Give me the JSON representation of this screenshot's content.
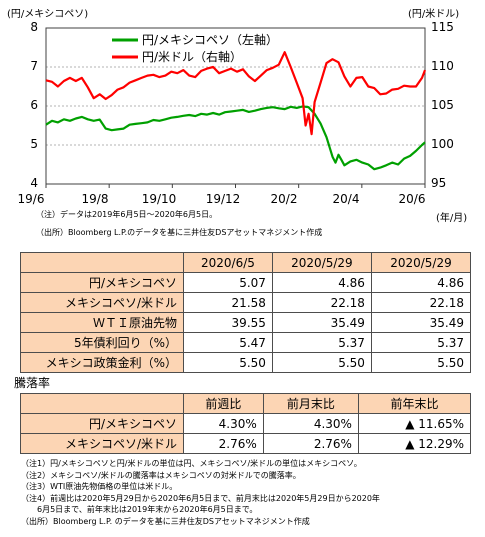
{
  "chart_data": {
    "type": "line",
    "left_axis_unit": "(円/メキシコペソ)",
    "right_axis_unit": "(円/米ドル)",
    "x_unit": "(年/月)",
    "x_ticks": [
      "19/6",
      "19/8",
      "19/10",
      "19/12",
      "20/2",
      "20/4",
      "20/6"
    ],
    "y_left_ticks": [
      "8",
      "7",
      "6",
      "5",
      "4"
    ],
    "y_right_ticks": [
      "115",
      "110",
      "105",
      "100",
      "95"
    ],
    "ylim_left": [
      4,
      8
    ],
    "ylim_right": [
      95,
      115
    ],
    "grid": true,
    "legend_position": "top-center",
    "series": [
      {
        "name": "円/メキシコペソ（左軸）",
        "axis": "left",
        "color": "#00a000",
        "points": [
          [
            0,
            5.52
          ],
          [
            4,
            5.62
          ],
          [
            8,
            5.58
          ],
          [
            12,
            5.66
          ],
          [
            16,
            5.62
          ],
          [
            20,
            5.68
          ],
          [
            24,
            5.72
          ],
          [
            28,
            5.66
          ],
          [
            32,
            5.62
          ],
          [
            36,
            5.65
          ],
          [
            40,
            5.42
          ],
          [
            44,
            5.38
          ],
          [
            48,
            5.4
          ],
          [
            52,
            5.42
          ],
          [
            56,
            5.52
          ],
          [
            60,
            5.54
          ],
          [
            64,
            5.56
          ],
          [
            68,
            5.58
          ],
          [
            72,
            5.64
          ],
          [
            76,
            5.62
          ],
          [
            80,
            5.66
          ],
          [
            84,
            5.7
          ],
          [
            88,
            5.72
          ],
          [
            92,
            5.75
          ],
          [
            96,
            5.77
          ],
          [
            100,
            5.74
          ],
          [
            104,
            5.8
          ],
          [
            108,
            5.78
          ],
          [
            112,
            5.82
          ],
          [
            116,
            5.78
          ],
          [
            120,
            5.84
          ],
          [
            124,
            5.86
          ],
          [
            128,
            5.88
          ],
          [
            132,
            5.9
          ],
          [
            136,
            5.85
          ],
          [
            140,
            5.88
          ],
          [
            144,
            5.92
          ],
          [
            148,
            5.95
          ],
          [
            152,
            5.97
          ],
          [
            156,
            5.94
          ],
          [
            160,
            5.92
          ],
          [
            164,
            5.98
          ],
          [
            168,
            5.95
          ],
          [
            172,
            5.99
          ],
          [
            176,
            5.97
          ],
          [
            180,
            5.8
          ],
          [
            184,
            5.55
          ],
          [
            188,
            5.2
          ],
          [
            190,
            4.95
          ],
          [
            192,
            4.7
          ],
          [
            194,
            4.55
          ],
          [
            196,
            4.75
          ],
          [
            198,
            4.62
          ],
          [
            200,
            4.48
          ],
          [
            204,
            4.58
          ],
          [
            208,
            4.62
          ],
          [
            212,
            4.55
          ],
          [
            216,
            4.5
          ],
          [
            220,
            4.38
          ],
          [
            224,
            4.42
          ],
          [
            228,
            4.48
          ],
          [
            232,
            4.55
          ],
          [
            236,
            4.5
          ],
          [
            240,
            4.65
          ],
          [
            244,
            4.72
          ],
          [
            248,
            4.85
          ],
          [
            252,
            5.0
          ],
          [
            254,
            5.07
          ]
        ]
      },
      {
        "name": "円/米ドル（右軸）",
        "axis": "right",
        "color": "#ff0000",
        "points": [
          [
            0,
            108.3
          ],
          [
            4,
            108.1
          ],
          [
            8,
            107.5
          ],
          [
            12,
            108.2
          ],
          [
            16,
            108.6
          ],
          [
            20,
            108.2
          ],
          [
            24,
            108.6
          ],
          [
            28,
            107.4
          ],
          [
            32,
            106.0
          ],
          [
            36,
            106.5
          ],
          [
            40,
            105.9
          ],
          [
            44,
            106.4
          ],
          [
            48,
            107.1
          ],
          [
            52,
            107.4
          ],
          [
            56,
            108.0
          ],
          [
            60,
            108.3
          ],
          [
            64,
            108.6
          ],
          [
            68,
            108.9
          ],
          [
            72,
            109.0
          ],
          [
            76,
            108.7
          ],
          [
            80,
            108.9
          ],
          [
            84,
            109.4
          ],
          [
            88,
            109.2
          ],
          [
            92,
            109.6
          ],
          [
            96,
            108.9
          ],
          [
            100,
            108.7
          ],
          [
            104,
            109.5
          ],
          [
            108,
            109.8
          ],
          [
            112,
            110.0
          ],
          [
            116,
            109.2
          ],
          [
            120,
            109.5
          ],
          [
            124,
            109.8
          ],
          [
            128,
            109.4
          ],
          [
            132,
            109.7
          ],
          [
            136,
            108.8
          ],
          [
            140,
            108.2
          ],
          [
            144,
            108.9
          ],
          [
            148,
            109.6
          ],
          [
            152,
            109.9
          ],
          [
            156,
            110.3
          ],
          [
            160,
            111.9
          ],
          [
            164,
            110.0
          ],
          [
            168,
            108.0
          ],
          [
            172,
            106.0
          ],
          [
            174,
            102.5
          ],
          [
            176,
            104.0
          ],
          [
            178,
            101.4
          ],
          [
            180,
            105.5
          ],
          [
            184,
            108.0
          ],
          [
            188,
            110.5
          ],
          [
            192,
            111.0
          ],
          [
            196,
            110.6
          ],
          [
            200,
            108.8
          ],
          [
            204,
            107.5
          ],
          [
            208,
            108.6
          ],
          [
            212,
            108.7
          ],
          [
            216,
            107.5
          ],
          [
            220,
            107.3
          ],
          [
            224,
            106.5
          ],
          [
            228,
            106.6
          ],
          [
            232,
            107.1
          ],
          [
            236,
            107.2
          ],
          [
            240,
            107.6
          ],
          [
            244,
            107.5
          ],
          [
            248,
            107.5
          ],
          [
            252,
            108.6
          ],
          [
            254,
            109.6
          ]
        ]
      }
    ]
  },
  "chart_notes": {
    "note1": "（注）データは2019年6月5日～2020年6月5日。",
    "source": "（出所）Bloomberg L.P.のデータを基に三井住友DSアセットマネジメント作成"
  },
  "levels_table": {
    "headers": [
      "2020/6/5",
      "2020/5/29",
      "2020/5/29"
    ],
    "rows": [
      {
        "label": "円/メキシコペソ",
        "values": [
          "5.07",
          "4.86",
          "4.86"
        ]
      },
      {
        "label": "メキシコペソ/米ドル",
        "values": [
          "21.58",
          "22.18",
          "22.18"
        ]
      },
      {
        "label": "ＷＴＩ原油先物",
        "values": [
          "39.55",
          "35.49",
          "35.49"
        ]
      },
      {
        "label": "5年債利回り（%）",
        "values": [
          "5.47",
          "5.37",
          "5.37"
        ]
      },
      {
        "label": "メキシコ政策金利（%）",
        "values": [
          "5.50",
          "5.50",
          "5.50"
        ]
      }
    ]
  },
  "change_title": "騰落率",
  "change_table": {
    "headers": [
      "前週比",
      "前月末比",
      "前年末比"
    ],
    "rows": [
      {
        "label": "円/メキシコペソ",
        "values": [
          "4.30%",
          "4.30%",
          "▲ 11.65%"
        ]
      },
      {
        "label": "メキシコペソ/米ドル",
        "values": [
          "2.76%",
          "2.76%",
          "▲ 12.29%"
        ]
      }
    ]
  },
  "footnotes": [
    "（注1）円/メキシコペソと円/米ドルの単位は円、メキシコペソ/米ドルの単位はメキシコペソ。",
    "（注2）メキシコペソ/米ドルの騰落率はメキシコペソの対米ドルでの騰落率。",
    "（注3）WTI原油先物価格の単位は米ドル。",
    "（注4）前週比は2020年5月29日から2020年6月5日まで、前月末比は2020年5月29日から2020年",
    "　　6月5日まで、前年末比は2019年末から2020年6月5日まで。",
    "（出所）Bloomberg L.P. のデータを基に三井住友DSアセットマネジメント作成"
  ]
}
